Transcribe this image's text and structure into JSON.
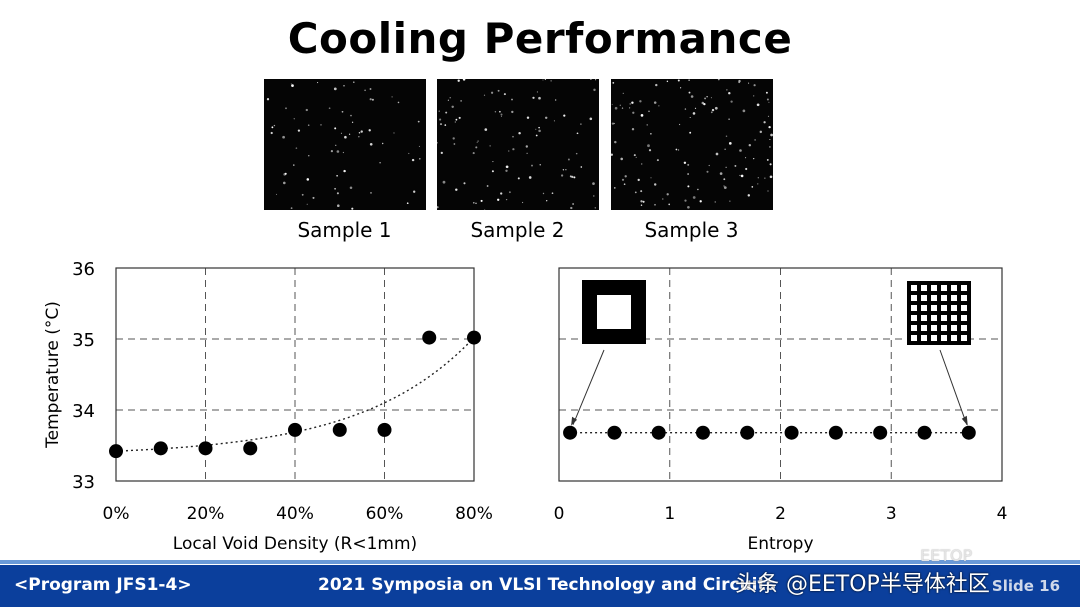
{
  "title": "Cooling Performance",
  "samples": [
    {
      "label": "Sample 1"
    },
    {
      "label": "Sample 2"
    },
    {
      "label": "Sample 3"
    }
  ],
  "footer": {
    "left": "<Program JFS1-4>",
    "center": "2021 Symposia on VLSI Technology and Circuits",
    "right": "Slide 16"
  },
  "watermark": {
    "main": "头条 @EETOP半导体社区",
    "faint": "EETOP"
  },
  "colors": {
    "footer_bar": "#0b3f9c",
    "marker": "#000000",
    "grid": "#555555"
  },
  "chart_data": [
    {
      "type": "scatter",
      "xlabel": "Local Void Density (R<1mm)",
      "ylabel": "Temperature (°C)",
      "xlim": [
        0,
        80
      ],
      "ylim": [
        33,
        36
      ],
      "xticks": [
        0,
        20,
        40,
        60,
        80
      ],
      "xtick_labels": [
        "0%",
        "20%",
        "40%",
        "60%",
        "80%"
      ],
      "yticks": [
        33,
        34,
        35,
        36
      ],
      "ytick_labels": [
        "33",
        "34",
        "35",
        "36"
      ],
      "grid": true,
      "trendline": "exponential (dotted)",
      "x": [
        0,
        10,
        20,
        30,
        40,
        50,
        60,
        70,
        80
      ],
      "y": [
        33.42,
        33.46,
        33.46,
        33.46,
        33.72,
        33.72,
        33.72,
        35.02,
        35.02
      ]
    },
    {
      "type": "scatter",
      "xlabel": "Entropy",
      "ylabel": "",
      "xlim": [
        0,
        4
      ],
      "ylim": [
        33,
        36
      ],
      "xticks": [
        0,
        1,
        2,
        3,
        4
      ],
      "xtick_labels": [
        "0",
        "1",
        "2",
        "3",
        "4"
      ],
      "grid": true,
      "trendline": "flat (dotted)",
      "x": [
        0.1,
        0.5,
        0.9,
        1.3,
        1.7,
        2.1,
        2.5,
        2.9,
        3.3,
        3.7
      ],
      "y": [
        33.68,
        33.68,
        33.68,
        33.68,
        33.68,
        33.68,
        33.68,
        33.68,
        33.68,
        33.68
      ],
      "annotations": [
        {
          "icon": "hollow-square-pattern-icon",
          "points_to_x": 0.1
        },
        {
          "icon": "grid-pattern-icon",
          "points_to_x": 3.7
        }
      ]
    }
  ]
}
